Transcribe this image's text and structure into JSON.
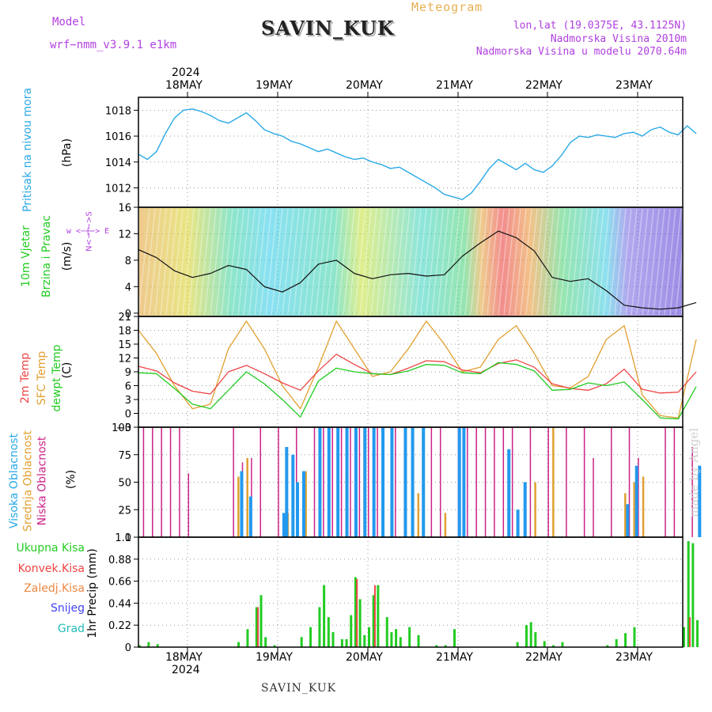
{
  "header": {
    "model_label": "Model",
    "model_name": "wrf−nmm_v3.9.1 e1km",
    "station": "SAVIN_KUK",
    "meteogram": "Meteogram",
    "lonlat": "lon,lat (19.0375E, 43.1125N)",
    "elevation": "Nadmorska Visina 2010m",
    "model_elevation": "Nadmorska Visina u modelu 2070.64m"
  },
  "top_axis": {
    "year": "2024",
    "days": [
      "18MAY",
      "19MAY",
      "20MAY",
      "21MAY",
      "22MAY",
      "23MAY"
    ]
  },
  "bottom_axis": {
    "year": "2024",
    "days": [
      "18MAY",
      "19MAY",
      "20MAY",
      "21MAY",
      "22MAY",
      "23MAY"
    ]
  },
  "footer": {
    "station": "SAVIN_KUK"
  },
  "watermark": "made by Angel",
  "panels": {
    "pressure": {
      "label": "Pritisak na nivou mora",
      "unit": "(hPa)",
      "color": "#29a9e6"
    },
    "wind": {
      "label1": "10m Vjetar",
      "label2": "Brzina i Pravac",
      "unit": "(m/s)",
      "compass": "w <−|−> E",
      "compass_n": "N<−|−>S",
      "color": "#22cc22"
    },
    "temp": {
      "label1": "2m Temp",
      "label2": "SFC Temp",
      "label3": "dewpt Temp",
      "unit": "(C)",
      "colors": {
        "t2m": "#ee4444",
        "sfc": "#e0a030",
        "dew": "#22cc22"
      }
    },
    "cloud": {
      "label1": "Visoka Oblacnost",
      "label2": "Srednja Oblacnost",
      "label3": "Niska Oblacnost",
      "unit": "(%)",
      "colors": {
        "high": "#2299ee",
        "mid": "#e0a030",
        "low": "#cc2288"
      }
    },
    "precip": {
      "label": "1hr Precip (mm)",
      "legend": [
        "Ukupna Kisa",
        "Konvek.Kisa",
        "Zaledj.Kisa",
        "Snijeg",
        "Grad"
      ],
      "legend_colors": [
        "#22cc22",
        "#ee4444",
        "#ee8844",
        "#4444ee",
        "#22bbbb"
      ]
    }
  },
  "chart_data": [
    {
      "type": "line",
      "title": "Pritisak na nivou mora",
      "ylabel": "(hPa)",
      "ylim": [
        1010.5,
        1019
      ],
      "yticks": [
        1012,
        1014,
        1016,
        1018
      ],
      "x_days": [
        "18MAY",
        "19MAY",
        "20MAY",
        "21MAY",
        "22MAY",
        "23MAY"
      ],
      "series": [
        {
          "name": "Pritisak na nivou mora",
          "x": [
            0.0,
            0.1,
            0.2,
            0.3,
            0.4,
            0.5,
            0.6,
            0.7,
            0.8,
            0.9,
            1.0,
            1.1,
            1.2,
            1.3,
            1.4,
            1.5,
            1.6,
            1.7,
            1.8,
            1.9,
            2.0,
            2.1,
            2.2,
            2.3,
            2.4,
            2.5,
            2.6,
            2.7,
            2.8,
            2.9,
            3.0,
            3.1,
            3.2,
            3.3,
            3.4,
            3.5,
            3.6,
            3.7,
            3.8,
            3.9,
            4.0,
            4.1,
            4.2,
            4.3,
            4.4,
            4.5,
            4.6,
            4.7,
            4.8,
            4.9,
            5.0,
            5.1,
            5.2,
            5.3,
            5.4,
            5.5,
            5.6,
            5.7,
            5.8,
            5.9,
            6.0,
            6.1,
            6.2
          ],
          "values": [
            1014.6,
            1014.2,
            1014.8,
            1016.2,
            1017.4,
            1018.0,
            1018.1,
            1017.9,
            1017.6,
            1017.2,
            1017.0,
            1017.4,
            1017.8,
            1017.2,
            1016.5,
            1016.2,
            1016.0,
            1015.6,
            1015.4,
            1015.1,
            1014.8,
            1015.0,
            1014.7,
            1014.4,
            1014.2,
            1014.3,
            1014.0,
            1013.8,
            1013.5,
            1013.6,
            1013.2,
            1012.8,
            1012.4,
            1012.0,
            1011.5,
            1011.3,
            1011.1,
            1011.6,
            1012.5,
            1013.5,
            1014.2,
            1013.8,
            1013.4,
            1013.9,
            1013.4,
            1013.2,
            1013.7,
            1014.5,
            1015.5,
            1016.0,
            1015.9,
            1016.1,
            1016.0,
            1015.9,
            1016.2,
            1016.3,
            1016.0,
            1016.5,
            1016.7,
            1016.3,
            1016.1,
            1016.8,
            1016.2
          ]
        }
      ]
    },
    {
      "type": "line",
      "title": "10m Vjetar Brzina i Pravac",
      "ylabel": "(m/s)",
      "ylim": [
        -0.5,
        16
      ],
      "yticks": [
        0,
        4,
        8,
        12,
        16
      ],
      "series": [
        {
          "name": "10m Vjetar",
          "x": [
            0.0,
            0.2,
            0.4,
            0.6,
            0.8,
            1.0,
            1.2,
            1.4,
            1.6,
            1.8,
            2.0,
            2.2,
            2.4,
            2.6,
            2.8,
            3.0,
            3.2,
            3.4,
            3.6,
            3.8,
            4.0,
            4.2,
            4.4,
            4.6,
            4.8,
            5.0,
            5.2,
            5.4,
            5.6,
            5.8,
            6.0,
            6.2
          ],
          "values": [
            9.6,
            8.4,
            6.4,
            5.4,
            6.0,
            7.2,
            6.6,
            4.0,
            3.2,
            4.6,
            7.4,
            8.0,
            6.0,
            5.2,
            5.8,
            6.0,
            5.6,
            5.8,
            8.6,
            10.6,
            12.4,
            11.4,
            9.4,
            5.4,
            4.8,
            5.2,
            3.4,
            1.2,
            0.8,
            0.6,
            0.8,
            1.6
          ]
        }
      ]
    },
    {
      "type": "line",
      "title": "2m Temp / SFC Temp / dewpt Temp",
      "ylabel": "(C)",
      "ylim": [
        -3,
        21
      ],
      "yticks": [
        0,
        3,
        6,
        9,
        12,
        15,
        18,
        21
      ],
      "series": [
        {
          "name": "2m Temp",
          "x": [
            0.0,
            0.2,
            0.4,
            0.6,
            0.8,
            1.0,
            1.2,
            1.4,
            1.6,
            1.8,
            2.0,
            2.2,
            2.4,
            2.6,
            2.8,
            3.0,
            3.2,
            3.4,
            3.6,
            3.8,
            4.0,
            4.2,
            4.4,
            4.6,
            4.8,
            5.0,
            5.2,
            5.4,
            5.6,
            5.8,
            6.0,
            6.2
          ],
          "values": [
            10.2,
            9.2,
            6.6,
            4.8,
            4.2,
            9.0,
            10.4,
            8.6,
            6.6,
            5.0,
            9.2,
            12.8,
            10.6,
            8.6,
            8.4,
            9.8,
            11.4,
            11.2,
            9.4,
            8.8,
            10.8,
            11.6,
            10.0,
            6.4,
            5.4,
            5.0,
            6.4,
            9.6,
            5.2,
            4.4,
            4.6,
            9.0
          ]
        },
        {
          "name": "SFC Temp",
          "x": [
            0.0,
            0.2,
            0.4,
            0.6,
            0.8,
            1.0,
            1.2,
            1.4,
            1.6,
            1.8,
            2.0,
            2.2,
            2.4,
            2.6,
            2.8,
            3.0,
            3.2,
            3.4,
            3.6,
            3.8,
            4.0,
            4.2,
            4.4,
            4.6,
            4.8,
            5.0,
            5.2,
            5.4,
            5.6,
            5.8,
            6.0,
            6.2
          ],
          "values": [
            18.0,
            13.0,
            6.0,
            1.0,
            2.0,
            14.0,
            20.0,
            14.0,
            6.0,
            1.0,
            10.0,
            20.0,
            14.0,
            8.0,
            9.0,
            14.0,
            20.0,
            15.0,
            9.0,
            10.0,
            16.0,
            19.0,
            13.0,
            6.0,
            5.5,
            8.0,
            16.0,
            19.0,
            4.0,
            -0.5,
            -1.0,
            16.0
          ]
        },
        {
          "name": "dewpt Temp",
          "x": [
            0.0,
            0.2,
            0.4,
            0.6,
            0.8,
            1.0,
            1.2,
            1.4,
            1.6,
            1.8,
            2.0,
            2.2,
            2.4,
            2.6,
            2.8,
            3.0,
            3.2,
            3.4,
            3.6,
            3.8,
            4.0,
            4.2,
            4.4,
            4.6,
            4.8,
            5.0,
            5.2,
            5.4,
            5.6,
            5.8,
            6.0,
            6.2
          ],
          "values": [
            8.8,
            8.6,
            5.4,
            2.0,
            1.0,
            5.0,
            9.0,
            6.4,
            3.0,
            -0.8,
            7.0,
            9.8,
            9.0,
            8.6,
            8.4,
            9.2,
            10.6,
            10.4,
            8.8,
            8.6,
            11.0,
            10.6,
            9.2,
            5.0,
            5.2,
            6.6,
            6.0,
            6.8,
            3.0,
            -1.0,
            -1.2,
            5.8
          ]
        }
      ]
    },
    {
      "type": "bar",
      "title": "Visoka / Srednja / Niska Oblacnost",
      "ylabel": "(%)",
      "ylim": [
        0,
        100
      ],
      "yticks": [
        0,
        25,
        50,
        75,
        100
      ],
      "series": [
        {
          "name": "Niska Oblacnost",
          "x": [
            0.05,
            0.15,
            0.25,
            0.35,
            0.45,
            0.55,
            1.05,
            1.15,
            1.25,
            1.35,
            1.55,
            1.75,
            1.95,
            2.05,
            2.15,
            2.25,
            2.35,
            2.45,
            2.55,
            2.65,
            2.85,
            2.95,
            3.25,
            3.35,
            3.55,
            3.65,
            3.75,
            3.85,
            3.95,
            4.05,
            4.15,
            4.35,
            4.55,
            4.75,
            4.95,
            5.05,
            5.25,
            5.45,
            5.55,
            5.85,
            5.95,
            6.15
          ],
          "values": [
            100,
            100,
            100,
            100,
            100,
            58,
            100,
            68,
            72,
            100,
            100,
            100,
            100,
            100,
            100,
            100,
            100,
            100,
            100,
            100,
            100,
            82,
            100,
            100,
            100,
            100,
            100,
            100,
            100,
            100,
            100,
            100,
            100,
            100,
            100,
            72,
            100,
            100,
            72,
            100,
            100,
            82
          ]
        },
        {
          "name": "Srednja Oblacnost",
          "x": [
            1.1,
            1.2,
            1.65,
            1.85,
            2.3,
            2.5,
            2.8,
            3.1,
            3.4,
            4.4,
            4.6,
            5.4,
            5.5,
            5.6
          ],
          "values": [
            55,
            72,
            22,
            60,
            60,
            100,
            30,
            40,
            22,
            50,
            100,
            40,
            50,
            55
          ]
        },
        {
          "name": "Visoka Oblacnost",
          "x": [
            1.13,
            1.23,
            1.6,
            1.63,
            1.7,
            1.75,
            1.82,
            2.0,
            2.1,
            2.2,
            2.3,
            2.4,
            2.5,
            2.6,
            2.7,
            2.8,
            2.95,
            3.03,
            3.15,
            3.55,
            3.6,
            4.1,
            4.2,
            4.28,
            5.42,
            5.52,
            6.22
          ],
          "values": [
            60,
            37,
            22,
            82,
            75,
            50,
            60,
            100,
            100,
            100,
            100,
            100,
            100,
            100,
            100,
            100,
            100,
            100,
            100,
            100,
            100,
            80,
            25,
            50,
            30,
            65,
            65
          ]
        }
      ]
    },
    {
      "type": "bar",
      "title": "1hr Precip",
      "ylabel": "1hr Precip (mm)",
      "ylim": [
        0,
        1.1
      ],
      "yticks": [
        0,
        0.22,
        0.44,
        0.66,
        0.88,
        1.1
      ],
      "series": [
        {
          "name": "Ukupna Kisa",
          "x": [
            0.0,
            0.1,
            0.2,
            1.1,
            1.2,
            1.3,
            1.35,
            1.4,
            1.5,
            1.8,
            1.9,
            2.0,
            2.05,
            2.1,
            2.15,
            2.25,
            2.3,
            2.35,
            2.4,
            2.45,
            2.5,
            2.55,
            2.6,
            2.65,
            2.75,
            2.8,
            2.85,
            2.9,
            3.0,
            3.1,
            3.3,
            3.4,
            3.5,
            4.2,
            4.3,
            4.35,
            4.4,
            4.5,
            4.6,
            4.7,
            5.2,
            5.3,
            5.4,
            5.5,
            6.05,
            6.1,
            6.15,
            6.2
          ],
          "values": [
            0.02,
            0.05,
            0.03,
            0.05,
            0.18,
            0.4,
            0.52,
            0.1,
            0.02,
            0.1,
            0.2,
            0.4,
            0.62,
            0.3,
            0.15,
            0.08,
            0.08,
            0.32,
            0.7,
            0.48,
            0.12,
            0.2,
            0.52,
            0.62,
            0.3,
            0.15,
            0.18,
            0.1,
            0.2,
            0.12,
            0.02,
            0.02,
            0.18,
            0.05,
            0.22,
            0.25,
            0.15,
            0.06,
            0.02,
            0.05,
            0.02,
            0.08,
            0.14,
            0.2,
            0.2,
            1.06,
            1.04,
            0.27
          ]
        },
        {
          "name": "Konvek.Kisa",
          "x": [
            1.32,
            2.42,
            2.62,
            6.12
          ],
          "values": [
            0.4,
            0.68,
            0.62,
            0.3
          ]
        }
      ]
    }
  ]
}
